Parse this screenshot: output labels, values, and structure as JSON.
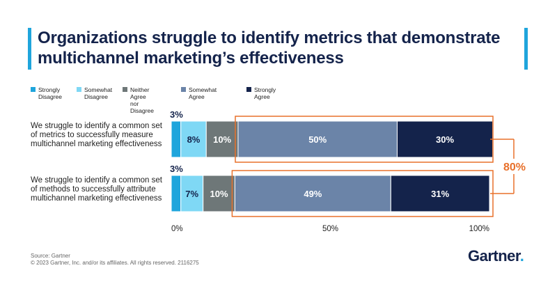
{
  "title": "Organizations struggle to identify metrics that demonstrate multichannel marketing’s effectiveness",
  "source": "Source: Gartner",
  "copyright": "© 2023 Gartner, Inc. and/or its affiliates. All rights reserved. 2116275",
  "logo": {
    "text": "Gartner",
    "dot": "."
  },
  "colors": {
    "strongly_disagree": "#1fa5dc",
    "somewhat_disagree": "#7fd8f5",
    "neither": "#6e7778",
    "somewhat_agree": "#6b84a8",
    "strongly_agree": "#14234b",
    "highlight": "#e8702a",
    "title_bar": "#1fa5dc"
  },
  "chart_data": {
    "type": "bar",
    "orientation": "horizontal",
    "stacked": true,
    "categories": [
      "We struggle to identify a common set of metrics to successfully measure multichannel marketing effectiveness",
      "We struggle to identify a common set of methods to successfully attribute multichannel marketing effectiveness"
    ],
    "series": [
      {
        "name": "Strongly Disagree",
        "values": [
          3,
          3
        ],
        "labels": [
          "3%",
          "3%"
        ]
      },
      {
        "name": "Somewhat Disagree",
        "values": [
          8,
          7
        ],
        "labels": [
          "8%",
          "7%"
        ]
      },
      {
        "name": "Neither Agree nor Disagree",
        "values": [
          10,
          10
        ],
        "labels": [
          "10%",
          "10%"
        ]
      },
      {
        "name": "Somewhat Agree",
        "values": [
          50,
          49
        ],
        "labels": [
          "50%",
          "49%"
        ]
      },
      {
        "name": "Strongly Agree",
        "values": [
          30,
          31
        ],
        "labels": [
          "30%",
          "31%"
        ]
      }
    ],
    "legend_labels": [
      "Strongly\nDisagree",
      "Somewhat\nDisagree",
      "Neither Agree\nnor Disagree",
      "Somewhat Agree",
      "Strongly Agree"
    ],
    "xlim": [
      0,
      100
    ],
    "x_ticks": [
      "0%",
      "50%",
      "100%"
    ],
    "annotation": "80%",
    "legend_position": "top-left",
    "grid": false
  }
}
